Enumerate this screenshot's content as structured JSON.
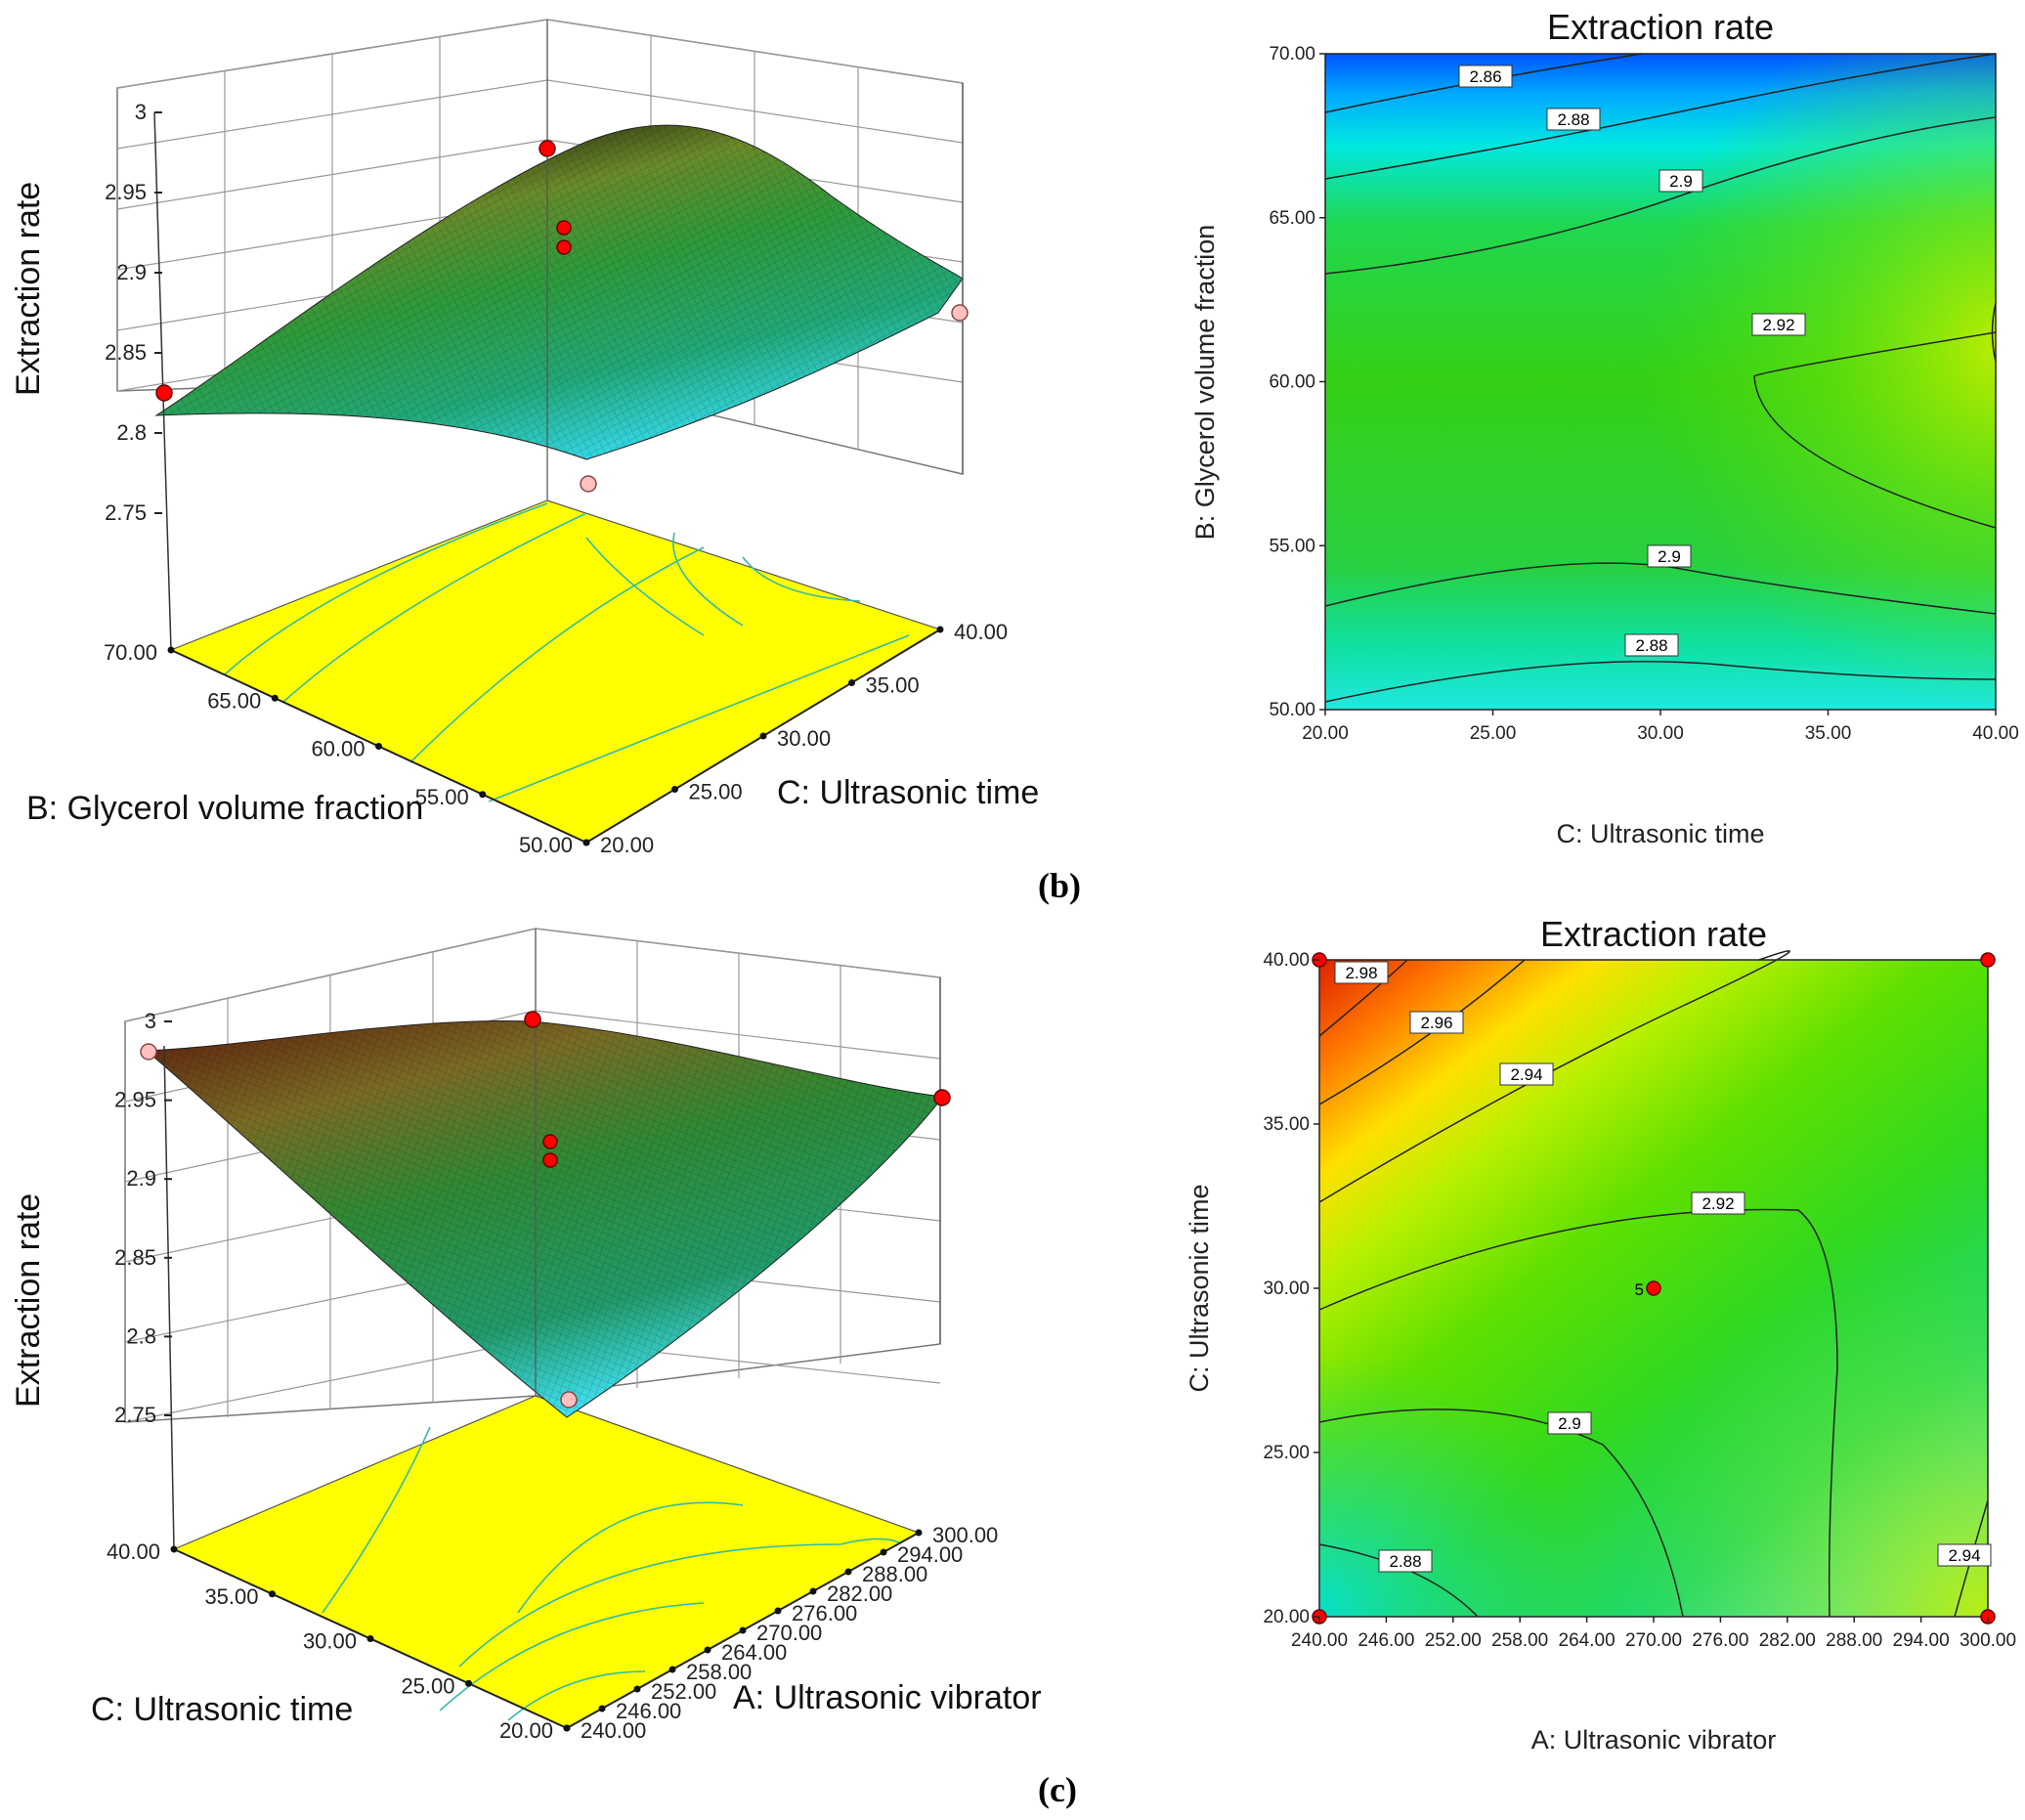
{
  "chart_data": [
    {
      "id": "b-3d",
      "type": "surface3d",
      "zlabel": "Extraction rate",
      "zticks": [
        "2.75",
        "2.8",
        "2.85",
        "2.9",
        "2.95",
        "3"
      ],
      "xlabel": "B: Glycerol volume fraction",
      "xticks": [
        "50.00",
        "55.00",
        "60.00",
        "65.00",
        "70.00"
      ],
      "ylabel": "C: Ultrasonic time",
      "yticks": [
        "20.00",
        "25.00",
        "30.00",
        "35.00",
        "40.00"
      ],
      "zlim": [
        2.75,
        3.0
      ]
    },
    {
      "id": "b-contour",
      "type": "contour",
      "title": "Extraction rate",
      "xlabel": "C: Ultrasonic time",
      "ylabel": "B: Glycerol volume fraction",
      "xticks": [
        "20.00",
        "25.00",
        "30.00",
        "35.00",
        "40.00"
      ],
      "yticks": [
        "50.00",
        "55.00",
        "60.00",
        "65.00",
        "70.00"
      ],
      "xlim": [
        20,
        40
      ],
      "ylim": [
        50,
        70
      ],
      "contour_labels": [
        "2.86",
        "2.88",
        "2.9",
        "2.92",
        "2.9",
        "2.88"
      ]
    },
    {
      "id": "c-3d",
      "type": "surface3d",
      "zlabel": "Extraction rate",
      "zticks": [
        "2.75",
        "2.8",
        "2.85",
        "2.9",
        "2.95",
        "3"
      ],
      "xlabel": "C: Ultrasonic time",
      "xticks": [
        "20.00",
        "25.00",
        "30.00",
        "35.00",
        "40.00"
      ],
      "ylabel": "A: Ultrasonic vibrator",
      "yticks": [
        "240.00",
        "246.00",
        "252.00",
        "258.00",
        "264.00",
        "270.00",
        "276.00",
        "282.00",
        "288.00",
        "294.00",
        "300.00"
      ],
      "zlim": [
        2.75,
        3.0
      ]
    },
    {
      "id": "c-contour",
      "type": "contour",
      "title": "Extraction rate",
      "xlabel": "A: Ultrasonic vibrator",
      "ylabel": "C: Ultrasonic time",
      "xticks": [
        "240.00",
        "246.00",
        "252.00",
        "258.00",
        "264.00",
        "270.00",
        "276.00",
        "282.00",
        "288.00",
        "294.00",
        "300.00"
      ],
      "yticks": [
        "20.00",
        "25.00",
        "30.00",
        "35.00",
        "40.00"
      ],
      "xlim": [
        240,
        300
      ],
      "ylim": [
        20,
        40
      ],
      "contour_labels": [
        "2.98",
        "2.96",
        "2.94",
        "2.92",
        "2.9",
        "2.88",
        "2.94"
      ],
      "center_point_label": "5",
      "design_points": [
        [
          240,
          40
        ],
        [
          300,
          40
        ],
        [
          240,
          20
        ],
        [
          300,
          20
        ],
        [
          270,
          30
        ]
      ]
    }
  ],
  "panel_labels": [
    "(b)",
    "(c)"
  ],
  "colors": {
    "floor": "#ffff00",
    "contour_line": "#222222",
    "design_point": "#ff0000",
    "design_point_light": "#ffc0c0"
  }
}
